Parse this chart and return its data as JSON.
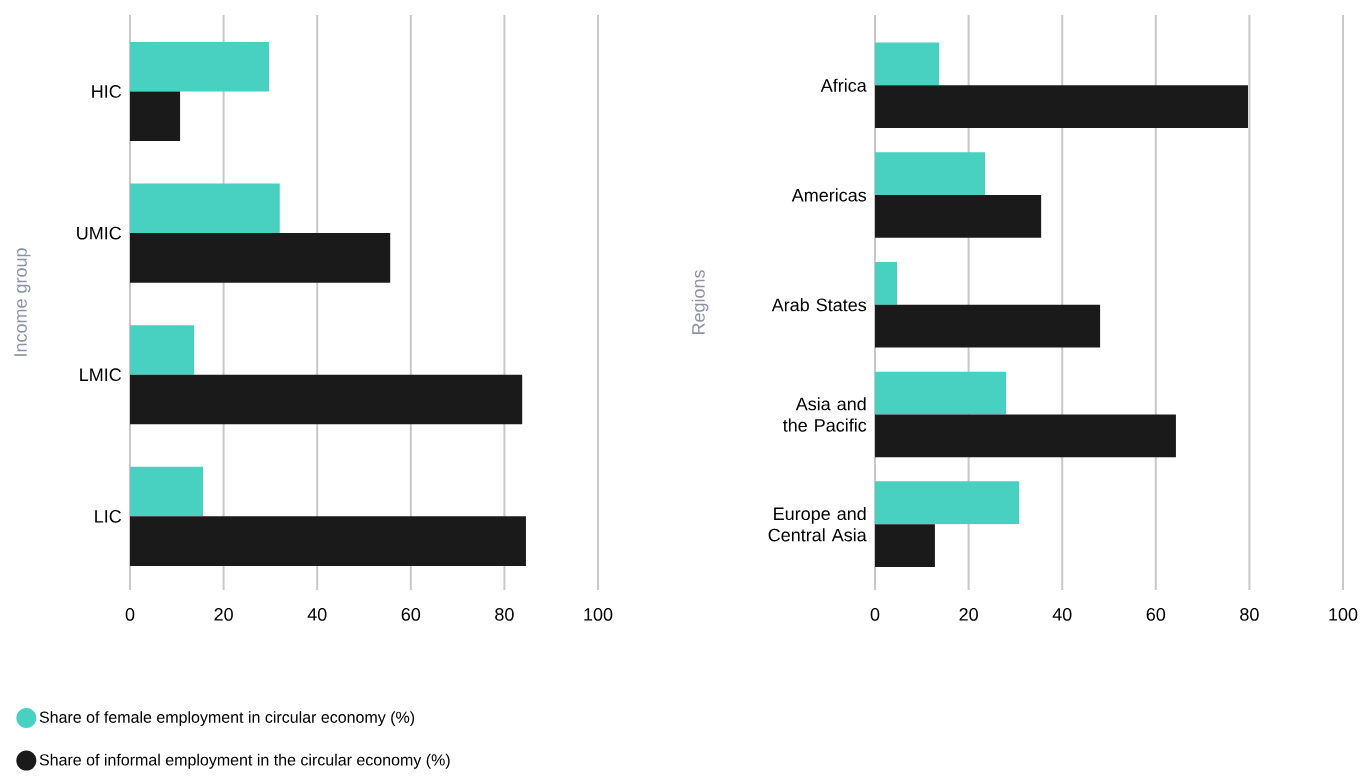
{
  "chart_data": [
    {
      "type": "bar",
      "orientation": "horizontal",
      "ylabel": "Income group",
      "categories": [
        "HIC",
        "UMIC",
        "LMIC",
        "LIC"
      ],
      "series": [
        {
          "name": "Share of female employment in circular economy (%)",
          "color": "#48d1c1",
          "values": [
            29.7,
            32,
            13.7,
            15.6
          ]
        },
        {
          "name": "Share of informal employment in the circular economy (%)",
          "color": "#1a1a1a",
          "values": [
            10.7,
            55.6,
            83.8,
            84.6
          ]
        }
      ],
      "xlim": [
        0,
        100
      ],
      "xticks": [
        0,
        20,
        40,
        60,
        80,
        100
      ],
      "grid": "x",
      "legend": "bottom left"
    },
    {
      "type": "bar",
      "orientation": "horizontal",
      "ylabel": "Regions",
      "categories": [
        "Africa",
        "Americas",
        "Arab States",
        "Asia and the Pacific",
        "Europe and Central Asia"
      ],
      "series": [
        {
          "color": "#48d1c1",
          "values": [
            13.7,
            23.5,
            4.7,
            28,
            30.8
          ]
        },
        {
          "color": "#1a1a1a",
          "values": [
            79.7,
            35.5,
            48.1,
            64.3,
            12.8
          ]
        }
      ],
      "xlim": [
        0,
        100
      ],
      "xticks": [
        0,
        20,
        40,
        60,
        80,
        100
      ],
      "grid": "x"
    }
  ]
}
